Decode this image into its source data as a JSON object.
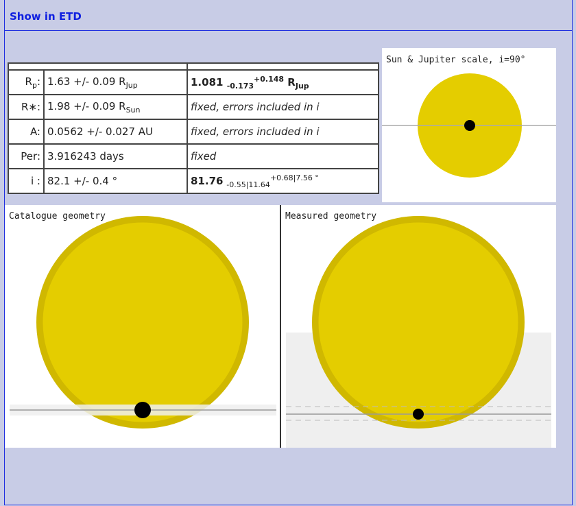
{
  "header": {
    "link": "Show in ETD"
  },
  "table": {
    "rows": [
      {
        "label_main": "R",
        "label_sub": "p",
        "label_end": ":",
        "catalogue_main": "1.63 +/- 0.09 R",
        "catalogue_sub": "Jup",
        "measured_value": "1.081",
        "measured_minus": "-0.173",
        "measured_plus": "+0.148",
        "measured_unit": "R",
        "measured_unit_sub": "Jup"
      },
      {
        "label": "R∗:",
        "catalogue_main": "1.98 +/- 0.09 R",
        "catalogue_sub": "Sun",
        "measured_note": "fixed, errors included in i"
      },
      {
        "label": "A:",
        "catalogue": "0.0562 +/- 0.027 AU",
        "measured_note": "fixed, errors included in i"
      },
      {
        "label": "Per:",
        "catalogue": "3.916243 days",
        "measured_note": "fixed"
      },
      {
        "label": "i :",
        "catalogue": "82.1 +/- 0.4 °",
        "measured_value": "81.76",
        "measured_minus": "-0.55|11.64",
        "measured_plus": "+0.68|7.56 °"
      }
    ]
  },
  "scale_view": {
    "title": "Sun & Jupiter scale, i=90°"
  },
  "catalogue_view": {
    "title": "Catalogue geometry"
  },
  "measured_view": {
    "title": "Measured geometry"
  },
  "colors": {
    "star": "#e4cd00",
    "star_rim": "#d0b800",
    "link": "#1020e0",
    "background": "#c8cce6"
  }
}
